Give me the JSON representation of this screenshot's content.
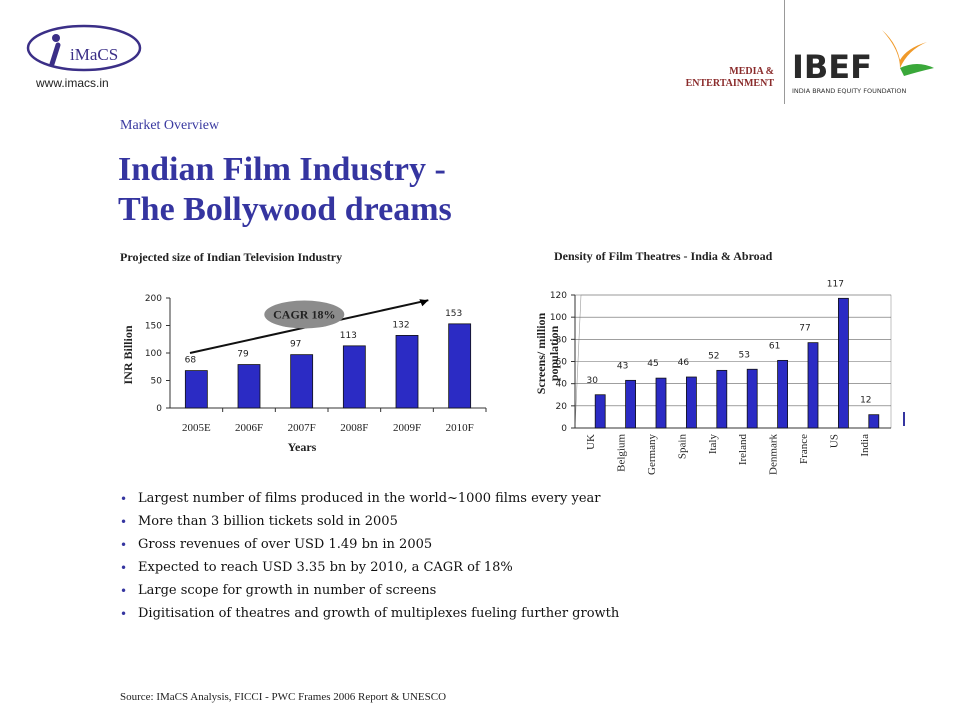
{
  "header": {
    "left_logo_text": "iMaCS",
    "left_url": "www.imacs.in",
    "right_section_label_line1": "MEDIA &",
    "right_section_label_line2": "ENTERTAINMENT",
    "right_logo_text": "IBEF",
    "right_logo_subtitle": "INDIA BRAND EQUITY FOUNDATION"
  },
  "kicker": "Market Overview",
  "title_line1": "Indian Film Industry -",
  "title_line2": "The Bollywood dreams",
  "chart_data": [
    {
      "type": "bar",
      "title": "Projected size of Indian Television Industry",
      "categories": [
        "2005E",
        "2006F",
        "2007F",
        "2008F",
        "2009F",
        "2010F"
      ],
      "values": [
        68,
        79,
        97,
        113,
        132,
        153
      ],
      "xlabel": "Years",
      "ylabel": "INR Billion",
      "ylim": [
        0,
        200
      ],
      "yticks": [
        0,
        50,
        100,
        150,
        200
      ],
      "annotation": "CAGR 18%",
      "bar_color": "#2b2bc4",
      "grid": false
    },
    {
      "type": "bar",
      "title": "Density of Film Theatres - India & Abroad",
      "categories": [
        "UK",
        "Belgium",
        "Germany",
        "Spain",
        "Italy",
        "Ireland",
        "Denmark",
        "France",
        "US",
        "India"
      ],
      "values": [
        30,
        43,
        45,
        46,
        52,
        53,
        61,
        77,
        117,
        12
      ],
      "xlabel": "",
      "ylabel": "Screens/ million population",
      "ylim": [
        0,
        120
      ],
      "yticks": [
        0,
        20,
        40,
        60,
        80,
        100,
        120
      ],
      "bar_color": "#2b2bc4",
      "grid": true
    }
  ],
  "bullets": [
    "Largest number of films produced in the world~1000 films every year",
    "More than 3 billion tickets sold in 2005",
    "Gross revenues of over USD 1.49 bn in 2005",
    "Expected to reach USD 3.35 bn by 2010, a CAGR of 18%",
    "Large scope for growth in number of screens",
    "Digitisation of theatres and growth of multiplexes fueling further growth"
  ],
  "source": "Source: IMaCS Analysis, FICCI - PWC Frames 2006 Report & UNESCO"
}
